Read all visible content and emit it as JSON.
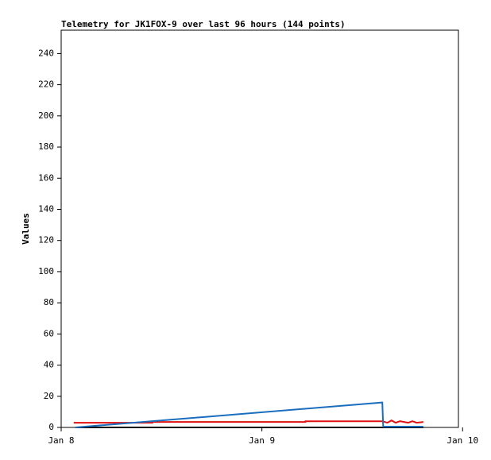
{
  "chart_data": {
    "type": "line",
    "title": "Telemetry for JK1FOX-9 over last 96 hours (144 points)",
    "y_label": "Values",
    "xlim": [
      0,
      47.5
    ],
    "ylim": [
      0,
      255
    ],
    "xticks": [
      {
        "value": 0,
        "label": "Jan 8"
      },
      {
        "value": 24,
        "label": "Jan 9"
      },
      {
        "value": 48,
        "label": "Jan 10"
      }
    ],
    "yticks": [
      0,
      20,
      40,
      60,
      80,
      100,
      120,
      140,
      160,
      180,
      200,
      220,
      240
    ],
    "grid": false,
    "series": [
      {
        "color": "#000000",
        "x": [
          1.7,
          43.3
        ],
        "values": [
          0,
          0
        ]
      },
      {
        "color": "#e01010",
        "x": [
          1.5,
          10.9,
          10.9,
          29.2,
          29.2,
          38.4,
          39,
          39.5,
          40,
          40.5,
          41,
          41.5,
          42,
          42.5,
          43.3
        ],
        "values": [
          3,
          3,
          3.5,
          3.5,
          4,
          4,
          3,
          4.5,
          3,
          4,
          3.5,
          3,
          4,
          3,
          3.5
        ]
      },
      {
        "color": "#1a6ebd",
        "x": [
          1.7,
          38.4,
          38.5,
          43.3
        ],
        "values": [
          0,
          16,
          0.5,
          0.5
        ]
      }
    ]
  }
}
